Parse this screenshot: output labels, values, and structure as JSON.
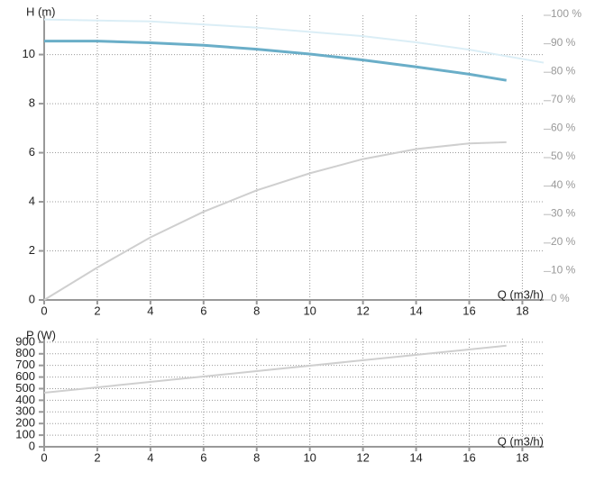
{
  "chart_data": [
    {
      "type": "line",
      "y_label": "H (m)",
      "x_label": "Q (m3/h)",
      "xlim": [
        0,
        18.8
      ],
      "xticks": [
        0,
        2,
        4,
        6,
        8,
        10,
        12,
        14,
        16,
        18
      ],
      "ylim": [
        0,
        11.6
      ],
      "yticks": [
        0,
        2,
        4,
        6,
        8,
        10
      ],
      "y2lim": [
        0,
        100
      ],
      "y2ticks": [
        {
          "value": 0,
          "label": "0 %"
        },
        {
          "value": 10,
          "label": "10 %"
        },
        {
          "value": 20,
          "label": "20 %"
        },
        {
          "value": 30,
          "label": "30 %"
        },
        {
          "value": 40,
          "label": "40 %"
        },
        {
          "value": 50,
          "label": "50 %"
        },
        {
          "value": 60,
          "label": "60 %"
        },
        {
          "value": 70,
          "label": "70 %"
        },
        {
          "value": 80,
          "label": "80 %"
        },
        {
          "value": 90,
          "label": "90 %"
        },
        {
          "value": 100,
          "label": "100 %"
        }
      ],
      "grid": true,
      "series": [
        {
          "color": "#dbeef6",
          "x": [
            0,
            4,
            8,
            12,
            14,
            16,
            18.8
          ],
          "values": [
            11.43,
            11.35,
            11.1,
            10.75,
            10.5,
            10.2,
            9.67
          ]
        },
        {
          "color": "#6aaec8",
          "x": [
            0,
            2,
            4,
            6,
            8,
            10,
            12,
            14,
            16,
            17.4
          ],
          "values": [
            10.55,
            10.55,
            10.48,
            10.38,
            10.22,
            10.02,
            9.78,
            9.5,
            9.2,
            8.95
          ]
        },
        {
          "color": "#cfcfcf",
          "axis": "y2",
          "x": [
            0,
            2,
            4,
            6,
            8,
            10,
            12,
            14,
            16,
            17.4
          ],
          "values": [
            0,
            11.4,
            22,
            31,
            38.5,
            44.5,
            49.5,
            53,
            55,
            55.4
          ]
        }
      ]
    },
    {
      "type": "line",
      "y_label": "P (W)",
      "x_label": "Q (m3/h)",
      "xlim": [
        0,
        18.8
      ],
      "xticks": [
        0,
        2,
        4,
        6,
        8,
        10,
        12,
        14,
        16,
        18
      ],
      "ylim": [
        0,
        930
      ],
      "yticks": [
        0,
        100,
        200,
        300,
        400,
        500,
        600,
        700,
        800,
        900
      ],
      "grid": true,
      "series": [
        {
          "color": "#cfcfcf",
          "x": [
            0,
            17.4
          ],
          "values": [
            465,
            870
          ]
        }
      ]
    }
  ]
}
